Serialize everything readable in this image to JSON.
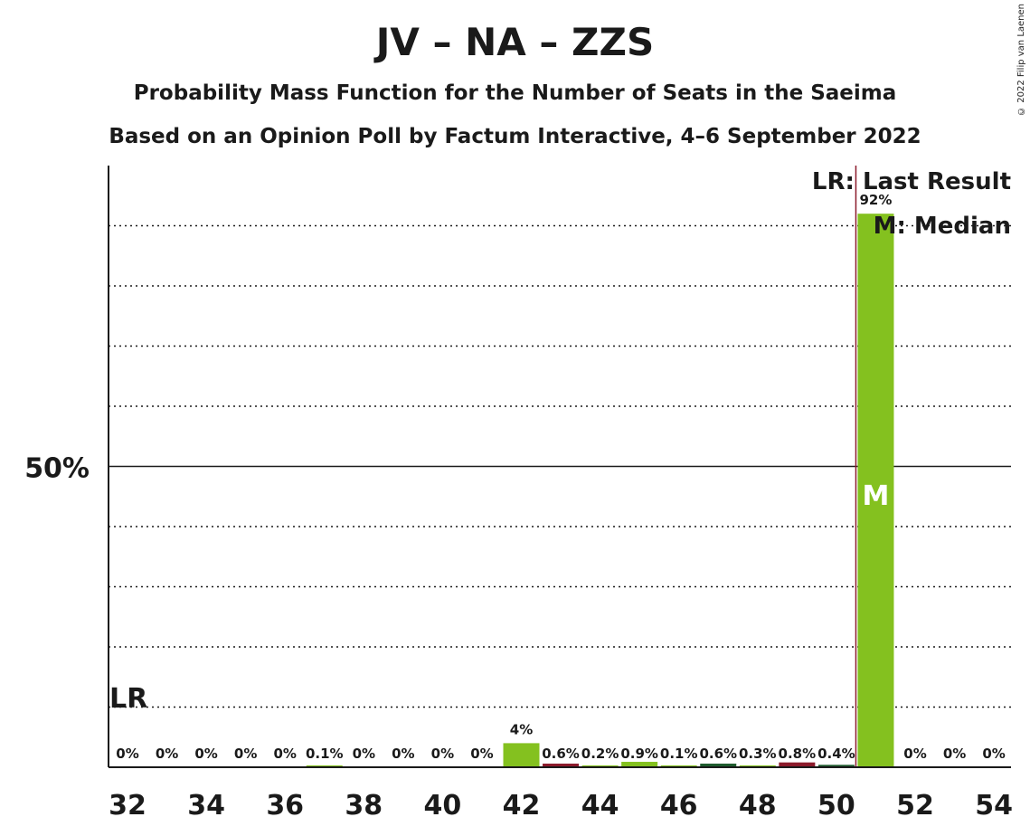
{
  "title": "JV – NA – ZZS",
  "subtitle1": "Probability Mass Function for the Number of Seats in the Saeima",
  "subtitle2": "Based on an Opinion Poll by Factum Interactive, 4–6 September 2022",
  "copyright": "© 2022 Filip van Laenen",
  "legend": {
    "last_result": "LR: Last Result",
    "median": "M: Median"
  },
  "colors": {
    "primary": "#84c11f",
    "secondary": "#8b1a2b",
    "tertiary": "#1e5b2e",
    "axis": "#1a1a1a",
    "lastResultLine": "#8b1a2b"
  },
  "chart_data": {
    "type": "bar",
    "x": [
      32,
      33,
      34,
      35,
      36,
      37,
      38,
      39,
      40,
      41,
      42,
      43,
      44,
      45,
      46,
      47,
      48,
      49,
      50,
      51,
      52,
      53,
      54
    ],
    "values": [
      0,
      0,
      0,
      0,
      0,
      0.1,
      0,
      0,
      0,
      0,
      4,
      0.6,
      0.2,
      0.9,
      0.1,
      0.6,
      0.3,
      0.8,
      0.4,
      92,
      0,
      0,
      0
    ],
    "labels": [
      "0%",
      "0%",
      "0%",
      "0%",
      "0%",
      "0.1%",
      "0%",
      "0%",
      "0%",
      "0%",
      "4%",
      "0.6%",
      "0.2%",
      "0.9%",
      "0.1%",
      "0.6%",
      "0.3%",
      "0.8%",
      "0.4%",
      "92%",
      "0%",
      "0%",
      "0%"
    ],
    "bar_colors": [
      "primary",
      "primary",
      "primary",
      "primary",
      "primary",
      "primary",
      "primary",
      "primary",
      "primary",
      "primary",
      "primary",
      "secondary",
      "primary",
      "primary",
      "primary",
      "tertiary",
      "primary",
      "secondary",
      "tertiary",
      "primary",
      "primary",
      "primary",
      "primary"
    ],
    "x_ticks": [
      32,
      34,
      36,
      38,
      40,
      42,
      44,
      46,
      48,
      50,
      52,
      54
    ],
    "y_tick_label": "50%",
    "y_tick_value": 50,
    "ylim": [
      0,
      100
    ],
    "gridlines": [
      10,
      20,
      30,
      40,
      60,
      70,
      80,
      90
    ],
    "last_result_seat": 51,
    "last_result_marker": "LR",
    "median_seat": 51,
    "median_marker": "M"
  }
}
